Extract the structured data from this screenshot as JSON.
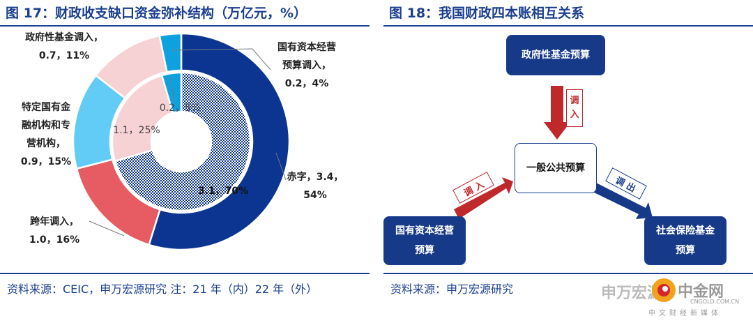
{
  "left": {
    "title": "图 17：财政收支缺口资金弥补结构（万亿元，%）",
    "source": "资料来源：CEIC，申万宏源研究 注：21 年（内）22 年（外）"
  },
  "chart_data": {
    "type": "pie",
    "variant": "double-donut",
    "title": "图 17：财政收支缺口资金弥补结构（万亿元，%）",
    "outer_ring": {
      "year": "22",
      "slices": [
        {
          "name": "赤字",
          "value": 3.4,
          "pct": 54,
          "color": "#0b3591"
        },
        {
          "name": "跨年调入",
          "value": 1.0,
          "pct": 16,
          "color": "#e65c62"
        },
        {
          "name": "特定国有金融机构和专营机构",
          "value": 0.9,
          "pct": 15,
          "color": "#62ccf6"
        },
        {
          "name": "政府性基金调入",
          "value": 0.7,
          "pct": 11,
          "color": "#f7d2d5"
        },
        {
          "name": "国有资本经营预算调入",
          "value": 0.2,
          "pct": 4,
          "color": "#0da1e0"
        }
      ]
    },
    "inner_ring": {
      "year": "21",
      "slices": [
        {
          "name": "赤字",
          "value": 3.1,
          "pct": 70,
          "color": "#0b3591"
        },
        {
          "name": "政府性基金调入",
          "value": 1.1,
          "pct": 25,
          "color": "#f7d2d5"
        },
        {
          "name": "国有资本经营预算调入",
          "value": 0.2,
          "pct": 5,
          "color": "#0da1e0"
        }
      ]
    },
    "labels": {
      "outer": [
        {
          "lines": [
            "赤字，3.4，",
            "54%"
          ]
        },
        {
          "lines": [
            "跨年调入，",
            "1.0，16%"
          ]
        },
        {
          "lines": [
            "特定国有金",
            "融机构和专",
            "营机构，",
            "0.9，15%"
          ]
        },
        {
          "lines": [
            "政府性基金调入，",
            "0.7，11%"
          ]
        },
        {
          "lines": [
            "国有资本经营",
            "预算调入，",
            "0.2，4%"
          ]
        }
      ],
      "inner": [
        "3.1，70%",
        "1.1，25%",
        "0.2，5%"
      ]
    }
  },
  "right": {
    "title": "图 18：我国财政四本账相互关系",
    "source": "资料来源：申万宏源研究",
    "boxes": {
      "gov_fund": "政府性基金预算",
      "general": "一般公共预算",
      "state_capital": [
        "国有资本经营",
        "预算"
      ],
      "social_ins": [
        "社会保险基金",
        "预算"
      ]
    },
    "arrows": {
      "top": [
        "调",
        "入"
      ],
      "left": "调 入",
      "right": "调 出"
    },
    "colors": {
      "red": "#c0292b",
      "navy": "#173a88"
    }
  },
  "watermark": {
    "brand": "中金网",
    "url": "CNGOLD.COM.CN",
    "tagline": "中文财经新媒体",
    "wechat": "申万宏源"
  }
}
